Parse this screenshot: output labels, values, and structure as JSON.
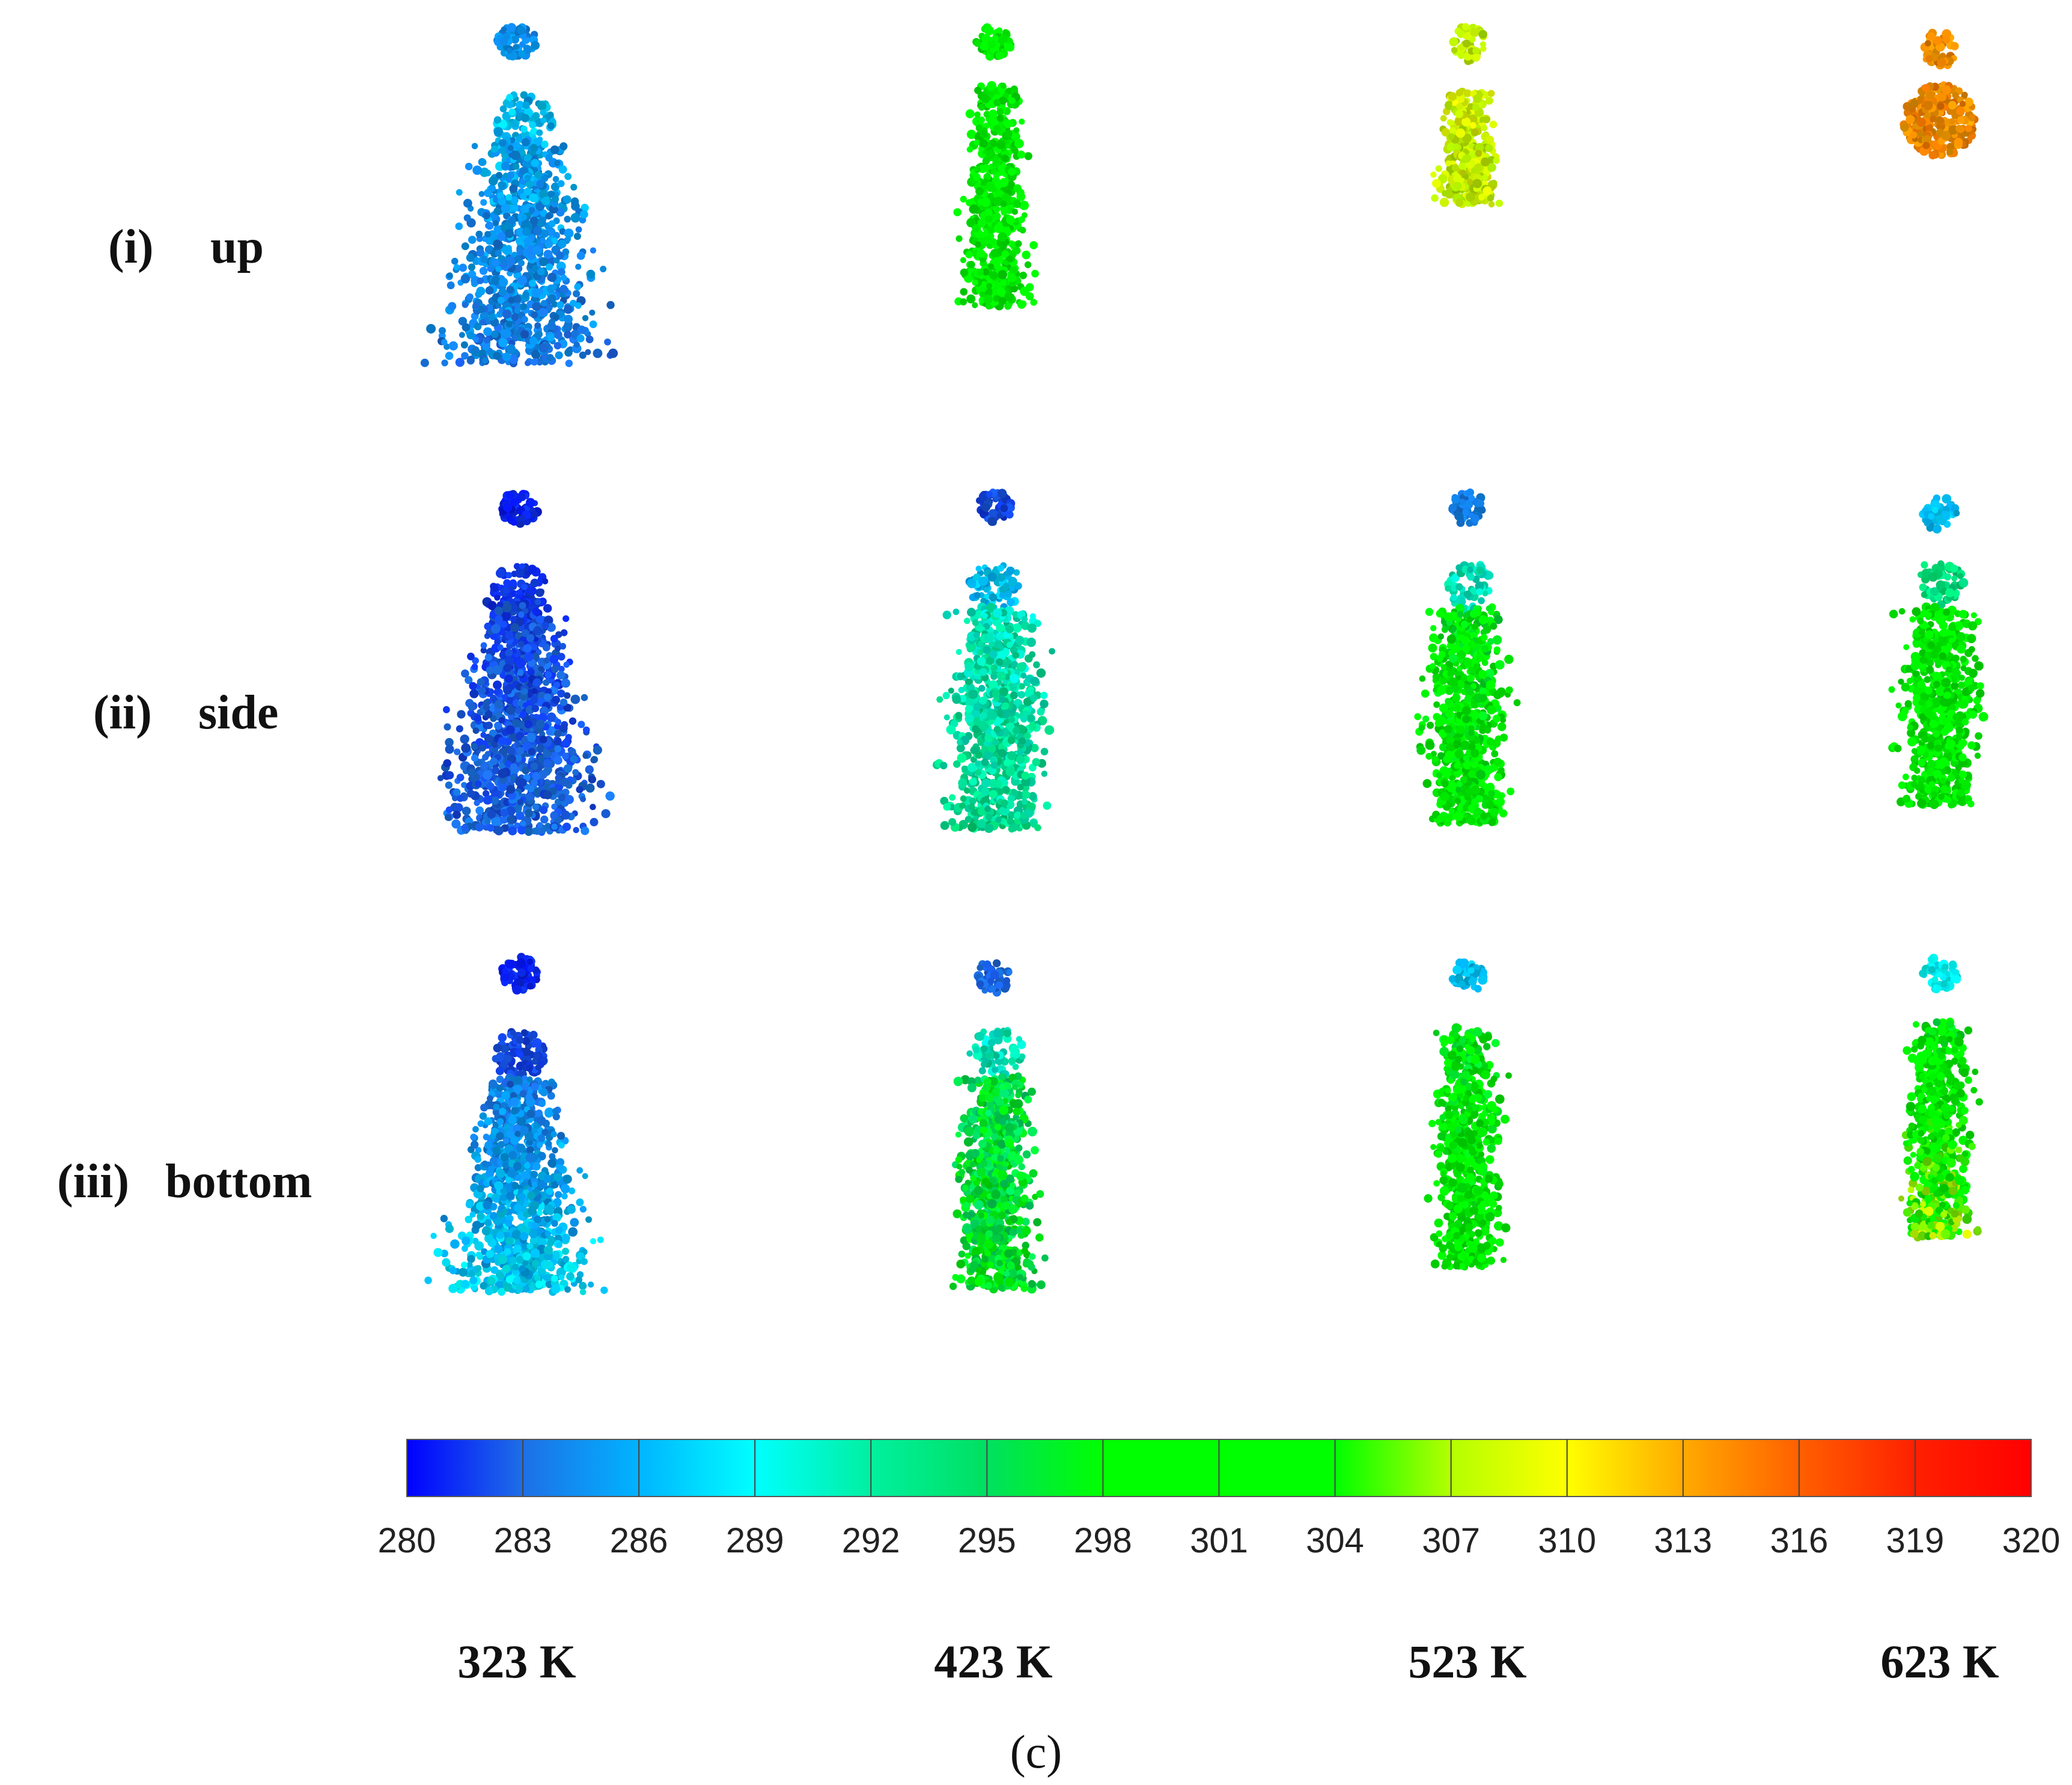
{
  "rows": [
    {
      "num": "(i)",
      "label": "up"
    },
    {
      "num": "(ii)",
      "label": "side"
    },
    {
      "num": "(iii)",
      "label": "bottom"
    }
  ],
  "columns": [
    "323 K",
    "423 K",
    "523 K",
    "623 K"
  ],
  "colorbar": {
    "ticks": [
      "280",
      "283",
      "286",
      "289",
      "292",
      "295",
      "298",
      "301",
      "304",
      "307",
      "310",
      "313",
      "316",
      "319",
      "320"
    ],
    "colors": [
      "#0000ff",
      "#1e6fe6",
      "#00b4ff",
      "#00ffff",
      "#00f0a0",
      "#00e060",
      "#00ff00",
      "#00ff00",
      "#00ff00",
      "#b4ff00",
      "#ffff00",
      "#ffaa00",
      "#ff6000",
      "#ff2000",
      "#ff0000"
    ]
  },
  "caption": "(c)"
}
